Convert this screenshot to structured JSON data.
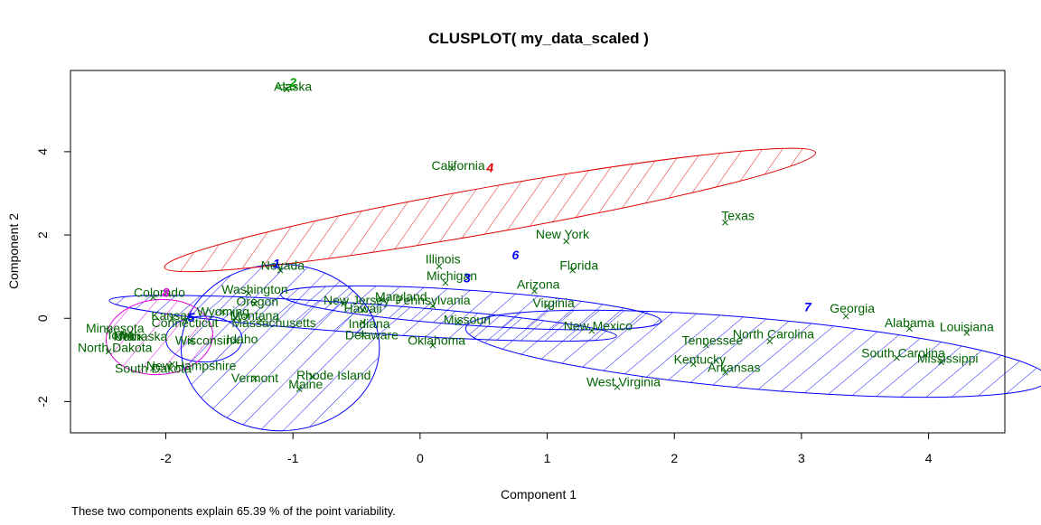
{
  "chart_data": {
    "type": "scatter",
    "title": "CLUSPLOT( my_data_scaled )",
    "xlabel": "Component 1",
    "ylabel": "Component 2",
    "subtitle": "These two components explain 65.39 % of the point variability.",
    "xlim": [
      -2.75,
      4.6
    ],
    "ylim": [
      -2.75,
      5.95
    ],
    "xticks": [
      -2,
      -1,
      0,
      1,
      2,
      3,
      4
    ],
    "yticks": [
      -2,
      0,
      2,
      4
    ],
    "label_color": "#006400",
    "clusters": [
      {
        "id": "1",
        "color": "#0000ff",
        "center": [
          -1.1,
          -0.7
        ],
        "rx": 0.78,
        "ry": 2.0,
        "angle": -0.2,
        "hatch": true
      },
      {
        "id": "2",
        "color": "#00a000",
        "center": [
          -1.05,
          5.55
        ],
        "rx": 0.08,
        "ry": 0.06,
        "angle": 0,
        "hatch": false
      },
      {
        "id": "3",
        "color": "#0000ff",
        "center": [
          0.4,
          0.25
        ],
        "rx": 1.5,
        "ry": 0.42,
        "angle": 4,
        "hatch": true
      },
      {
        "id": "4",
        "color": "#e00000",
        "center": [
          0.55,
          2.6
        ],
        "rx": 2.6,
        "ry": 0.55,
        "angle": -10,
        "hatch": true
      },
      {
        "id": "5",
        "color": "#0000ff",
        "center": [
          -0.45,
          0.0
        ],
        "rx": 2.0,
        "ry": 0.35,
        "angle": 4,
        "hatch": true
      },
      {
        "id": "6",
        "color": "#0000ff",
        "center": [
          -1.7,
          -0.5
        ],
        "rx": 0.3,
        "ry": 0.55,
        "angle": 0,
        "hatch": false
      },
      {
        "id": "7",
        "color": "#0000ff",
        "center": [
          2.65,
          -0.85
        ],
        "rx": 2.3,
        "ry": 0.85,
        "angle": 5,
        "hatch": true
      },
      {
        "id": "8",
        "color": "#e000e0",
        "center": [
          -2.05,
          -0.45
        ],
        "rx": 0.42,
        "ry": 0.9,
        "angle": -5,
        "hatch": true
      }
    ],
    "cluster_labels": [
      {
        "id": "1",
        "x": -1.13,
        "y": 1.3,
        "color": "#0000ff"
      },
      {
        "id": "2",
        "x": -1.0,
        "y": 5.65,
        "color": "#00a000"
      },
      {
        "id": "3",
        "x": 0.37,
        "y": 0.95,
        "color": "#0000ff"
      },
      {
        "id": "4",
        "x": 0.55,
        "y": 3.6,
        "color": "#e00000"
      },
      {
        "id": "5",
        "x": -1.8,
        "y": 0.0,
        "color": "#0000ff"
      },
      {
        "id": "6",
        "x": 0.75,
        "y": 1.5,
        "color": "#0000ff"
      },
      {
        "id": "7",
        "x": 3.05,
        "y": 0.25,
        "color": "#0000ff"
      },
      {
        "id": "8",
        "x": -2.0,
        "y": 0.6,
        "color": "#e000e0"
      }
    ],
    "points": [
      {
        "name": "Alaska",
        "x": -1.05,
        "y": 5.5,
        "lx": -1.0,
        "ly": 5.55
      },
      {
        "name": "California",
        "x": 0.25,
        "y": 3.6,
        "lx": 0.3,
        "ly": 3.65
      },
      {
        "name": "Texas",
        "x": 2.4,
        "y": 2.3,
        "lx": 2.5,
        "ly": 2.45
      },
      {
        "name": "New York",
        "x": 1.15,
        "y": 1.85,
        "lx": 1.12,
        "ly": 2.0
      },
      {
        "name": "Florida",
        "x": 1.2,
        "y": 1.15,
        "lx": 1.25,
        "ly": 1.25
      },
      {
        "name": "Illinois",
        "x": 0.15,
        "y": 1.25,
        "lx": 0.18,
        "ly": 1.4
      },
      {
        "name": "Michigan",
        "x": 0.2,
        "y": 0.85,
        "lx": 0.25,
        "ly": 1.0
      },
      {
        "name": "Arizona",
        "x": 0.9,
        "y": 0.65,
        "lx": 0.93,
        "ly": 0.8
      },
      {
        "name": "Virginia",
        "x": 1.0,
        "y": 0.3,
        "lx": 1.05,
        "ly": 0.35
      },
      {
        "name": "Missouri",
        "x": 0.3,
        "y": -0.1,
        "lx": 0.37,
        "ly": -0.05
      },
      {
        "name": "Oklahoma",
        "x": 0.1,
        "y": -0.65,
        "lx": 0.13,
        "ly": -0.55
      },
      {
        "name": "Pennsylvania",
        "x": 0.1,
        "y": 0.3,
        "lx": 0.1,
        "ly": 0.42
      },
      {
        "name": "Maryland",
        "x": -0.3,
        "y": 0.45,
        "lx": -0.15,
        "ly": 0.5
      },
      {
        "name": "New Jersey",
        "x": -0.6,
        "y": 0.35,
        "lx": -0.5,
        "ly": 0.42
      },
      {
        "name": "Hawaii",
        "x": -0.45,
        "y": 0.2,
        "lx": -0.45,
        "ly": 0.22
      },
      {
        "name": "Indiana",
        "x": -0.45,
        "y": -0.1,
        "lx": -0.4,
        "ly": -0.15
      },
      {
        "name": "Delaware",
        "x": -0.45,
        "y": -0.4,
        "lx": -0.38,
        "ly": -0.42
      },
      {
        "name": "Nevada",
        "x": -1.1,
        "y": 1.15,
        "lx": -1.08,
        "ly": 1.25
      },
      {
        "name": "Washington",
        "x": -1.35,
        "y": 0.6,
        "lx": -1.3,
        "ly": 0.68
      },
      {
        "name": "Oregon",
        "x": -1.3,
        "y": 0.35,
        "lx": -1.28,
        "ly": 0.38
      },
      {
        "name": "Wyoming",
        "x": -1.55,
        "y": 0.15,
        "lx": -1.55,
        "ly": 0.15
      },
      {
        "name": "Montana",
        "x": -1.45,
        "y": 0.0,
        "lx": -1.3,
        "ly": 0.05
      },
      {
        "name": "Massachusetts",
        "x": -1.25,
        "y": -0.05,
        "lx": -1.15,
        "ly": -0.12
      },
      {
        "name": "Connecticut",
        "x": -1.85,
        "y": -0.05,
        "lx": -1.85,
        "ly": -0.12
      },
      {
        "name": "Kansas",
        "x": -1.95,
        "y": 0.0,
        "lx": -1.95,
        "ly": 0.05
      },
      {
        "name": "Wisconsin",
        "x": -1.8,
        "y": -0.55,
        "lx": -1.7,
        "ly": -0.55
      },
      {
        "name": "Idaho",
        "x": -1.45,
        "y": -0.55,
        "lx": -1.4,
        "ly": -0.52
      },
      {
        "name": "Colorado",
        "x": -2.1,
        "y": 0.5,
        "lx": -2.05,
        "ly": 0.6
      },
      {
        "name": "Minnesota",
        "x": -2.45,
        "y": -0.3,
        "lx": -2.4,
        "ly": -0.25
      },
      {
        "name": "Utah",
        "x": -2.3,
        "y": -0.4,
        "lx": -2.3,
        "ly": -0.45
      },
      {
        "name": "Nebraska",
        "x": -2.2,
        "y": -0.45,
        "lx": -2.2,
        "ly": -0.45
      },
      {
        "name": "Iowa",
        "x": -2.35,
        "y": -0.35,
        "lx": -2.35,
        "ly": -0.42
      },
      {
        "name": "North Dakota",
        "x": -2.45,
        "y": -0.8,
        "lx": -2.4,
        "ly": -0.72
      },
      {
        "name": "South Dakota",
        "x": -2.1,
        "y": -1.2,
        "lx": -2.1,
        "ly": -1.22
      },
      {
        "name": "New Hampshire",
        "x": -1.95,
        "y": -1.1,
        "lx": -1.8,
        "ly": -1.15
      },
      {
        "name": "Vermont",
        "x": -1.3,
        "y": -1.45,
        "lx": -1.3,
        "ly": -1.45
      },
      {
        "name": "Rhode Island",
        "x": -0.85,
        "y": -1.4,
        "lx": -0.68,
        "ly": -1.38
      },
      {
        "name": "Maine",
        "x": -0.95,
        "y": -1.7,
        "lx": -0.9,
        "ly": -1.6
      },
      {
        "name": "New Mexico",
        "x": 1.35,
        "y": -0.3,
        "lx": 1.4,
        "ly": -0.2
      },
      {
        "name": "West Virginia",
        "x": 1.55,
        "y": -1.65,
        "lx": 1.6,
        "ly": -1.55
      },
      {
        "name": "Tennessee",
        "x": 2.25,
        "y": -0.65,
        "lx": 2.3,
        "ly": -0.55
      },
      {
        "name": "Kentucky",
        "x": 2.15,
        "y": -1.1,
        "lx": 2.2,
        "ly": -1.0
      },
      {
        "name": "Arkansas",
        "x": 2.4,
        "y": -1.3,
        "lx": 2.47,
        "ly": -1.2
      },
      {
        "name": "North Carolina",
        "x": 2.75,
        "y": -0.55,
        "lx": 2.78,
        "ly": -0.4
      },
      {
        "name": "Georgia",
        "x": 3.35,
        "y": 0.05,
        "lx": 3.4,
        "ly": 0.22
      },
      {
        "name": "Alabama",
        "x": 3.85,
        "y": -0.25,
        "lx": 3.85,
        "ly": -0.12
      },
      {
        "name": "Louisiana",
        "x": 4.3,
        "y": -0.35,
        "lx": 4.3,
        "ly": -0.22
      },
      {
        "name": "South Carolina",
        "x": 3.75,
        "y": -0.95,
        "lx": 3.8,
        "ly": -0.85
      },
      {
        "name": "Mississippi",
        "x": 4.1,
        "y": -1.05,
        "lx": 4.15,
        "ly": -0.98
      }
    ]
  }
}
